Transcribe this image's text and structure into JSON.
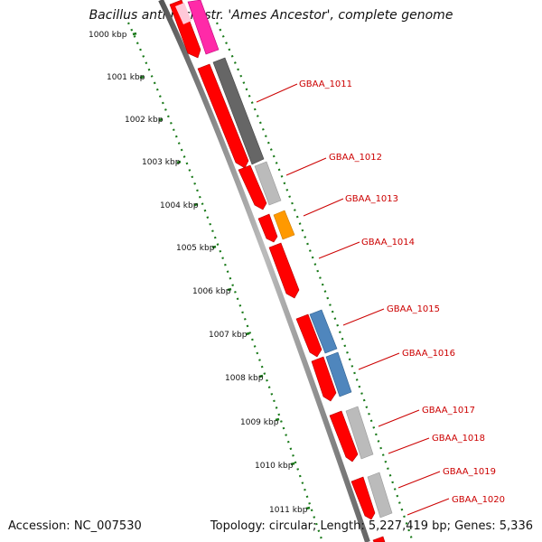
{
  "header": {
    "title": "Bacillus anthracis str. 'Ames Ancestor', complete genome"
  },
  "footer": {
    "accession": "Accession: NC_007530",
    "summary": "Topology: circular; Length: 5,227,419 bp; Genes: 5,336"
  },
  "scale": {
    "labels": [
      "1000 kbp",
      "1001 kbp",
      "1002 kbp",
      "1003 kbp",
      "1004 kbp",
      "1005 kbp",
      "1006 kbp",
      "1007 kbp",
      "1008 kbp",
      "1009 kbp",
      "1010 kbp",
      "1011 kbp"
    ]
  },
  "genes": {
    "labels": [
      "GBAA_1011",
      "GBAA_1012",
      "GBAA_1013",
      "GBAA_1014",
      "GBAA_1015",
      "GBAA_1016",
      "GBAA_1017",
      "GBAA_1018",
      "GBAA_1019",
      "GBAA_1020"
    ]
  },
  "colors": {
    "backbone": "#888888",
    "ticks": "#1a7a1a",
    "cds": "#ff0000",
    "pink": "#ff2aa8",
    "dark_gray": "#666666",
    "light_gray": "#bbbbbb",
    "orange": "#ff9900",
    "blue": "#4f86bd",
    "label": "#cc0000"
  }
}
